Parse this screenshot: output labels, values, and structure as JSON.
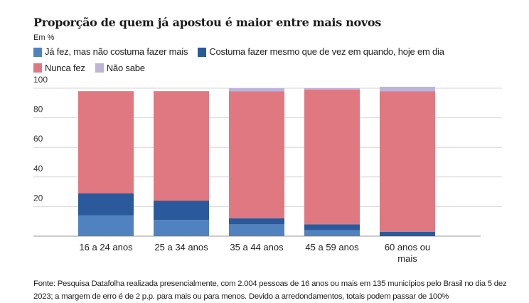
{
  "chart_data": {
    "type": "bar",
    "stacked": true,
    "title": "Proporção de quem já apostou é maior entre mais novos",
    "subtitle": "Em %",
    "categories": [
      "16 a 24 anos",
      "25 a 34 anos",
      "35 a 44 anos",
      "45 a 59 anos",
      "60 anos ou mais"
    ],
    "category_lines": [
      [
        "16 a 24 anos"
      ],
      [
        "25 a 34 anos"
      ],
      [
        "35 a 44 anos"
      ],
      [
        "45 a 59 anos"
      ],
      [
        "60 anos ou",
        "mais"
      ]
    ],
    "series": [
      {
        "name": "Já fez, mas não costuma fazer mais",
        "color": "#5182c0",
        "values": [
          14,
          11,
          8,
          4,
          0
        ]
      },
      {
        "name": "Costuma fazer mesmo que de vez em quando, hoje em dia",
        "color": "#2a5a9b",
        "values": [
          15,
          13,
          4,
          4,
          3
        ]
      },
      {
        "name": "Nunca fez",
        "color": "#e07882",
        "values": [
          69,
          74,
          86,
          91,
          95
        ]
      },
      {
        "name": "Não sabe",
        "color": "#bdb4d8",
        "values": [
          0,
          0,
          2,
          1,
          3
        ]
      }
    ],
    "ylim": [
      0,
      100
    ],
    "yticks": [
      20,
      40,
      60,
      80,
      100
    ],
    "grid": true,
    "legend_placement": "top-left",
    "source": "Fonte: Pesquisa Datafolha realizada presencialmente, com 2.004 pessoas de 16 anos ou mais em 135 municípios pelo Brasil no dia 5 dez 2023; a margem de erro é de 2 p.p. para mais ou para menos. Devido a arredondamentos, totais podem passar de 100%"
  }
}
